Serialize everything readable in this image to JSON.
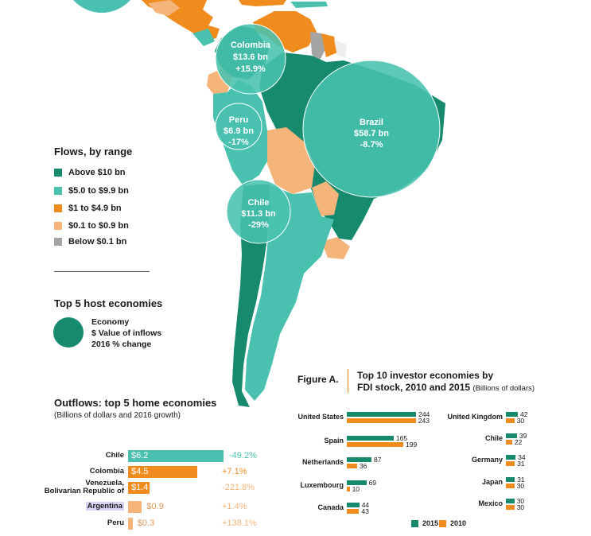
{
  "colors": {
    "above10": "#178a6e",
    "five_to_10": "#49c1ae",
    "one_to_5": "#f08c1e",
    "point1_to_1": "#f5b47a",
    "below01": "#a4a4a4",
    "s2015": "#178a6e",
    "s2010": "#f08c1e"
  },
  "bubbles": [
    {
      "country": "Colombia",
      "value": "$13.6 bn",
      "change": "+15.9%"
    },
    {
      "country": "Peru",
      "value": "$6.9 bn",
      "change": "-17%"
    },
    {
      "country": "Brazil",
      "value": "$58.7 bn",
      "change": "-8.7%"
    },
    {
      "country": "Chile",
      "value": "$11.3 bn",
      "change": "-29%"
    }
  ],
  "legend": {
    "title": "Flows, by range",
    "items": [
      {
        "label": "Above $10 bn",
        "color": "#178a6e"
      },
      {
        "label": "$5.0 to $9.9 bn",
        "color": "#49c1ae"
      },
      {
        "label": "$1 to $4.9 bn",
        "color": "#f08c1e"
      },
      {
        "label": "$0.1 to $0.9 bn",
        "color": "#f5b47a"
      },
      {
        "label": "Below $0.1 bn",
        "color": "#a4a4a4"
      }
    ]
  },
  "host_key": {
    "title": "Top 5 host economies",
    "line1": "Economy",
    "line2": "$ Value of inflows",
    "line3": "2016 % change"
  },
  "chart_data": [
    {
      "type": "bar",
      "title": "Outflows: top 5 home economies",
      "subtitle": "(Billions of dollars and 2016 growth)",
      "categories": [
        "Chile",
        "Colombia",
        "Venezuela, Bolivarian Republic of",
        "Argentina",
        "Peru"
      ],
      "category_lines": [
        [
          "Chile"
        ],
        [
          "Colombia"
        ],
        [
          "Venezuela,",
          "Bolivarian Republic of"
        ],
        [
          "Argentina"
        ],
        [
          "Peru"
        ]
      ],
      "values": [
        6.2,
        4.5,
        1.4,
        0.9,
        0.3
      ],
      "value_labels": [
        "$6.2",
        "$4.5",
        "$1.4",
        "$0.9",
        "$0.3"
      ],
      "growth": [
        "-49.2%",
        "+7.1%",
        "-221.8%",
        "+1.4%",
        "+138.1%"
      ],
      "bar_colors": [
        "#49c1ae",
        "#f08c1e",
        "#f08c1e",
        "#f5b47a",
        "#f5b47a"
      ],
      "growth_colors": [
        "#49c1ae",
        "#f08c1e",
        "#f5b47a",
        "#f5b47a",
        "#f5b47a"
      ]
    },
    {
      "type": "bar",
      "figure_label": "Figure A.",
      "title": "Top 10 investor economies by",
      "title_line2": "FDI stock, 2010 and 2015",
      "title_note": "(Billions of dollars)",
      "categories": [
        "United States",
        "Spain",
        "Netherlands",
        "Luxembourg",
        "Canada",
        "United Kingdom",
        "Chile",
        "Germany",
        "Japan",
        "Mexico"
      ],
      "series": [
        {
          "name": "2015",
          "values": [
            244,
            165,
            87,
            69,
            44,
            42,
            39,
            34,
            31,
            30
          ]
        },
        {
          "name": "2010",
          "values": [
            243,
            199,
            36,
            10,
            43,
            30,
            22,
            31,
            30,
            30
          ]
        }
      ]
    }
  ]
}
